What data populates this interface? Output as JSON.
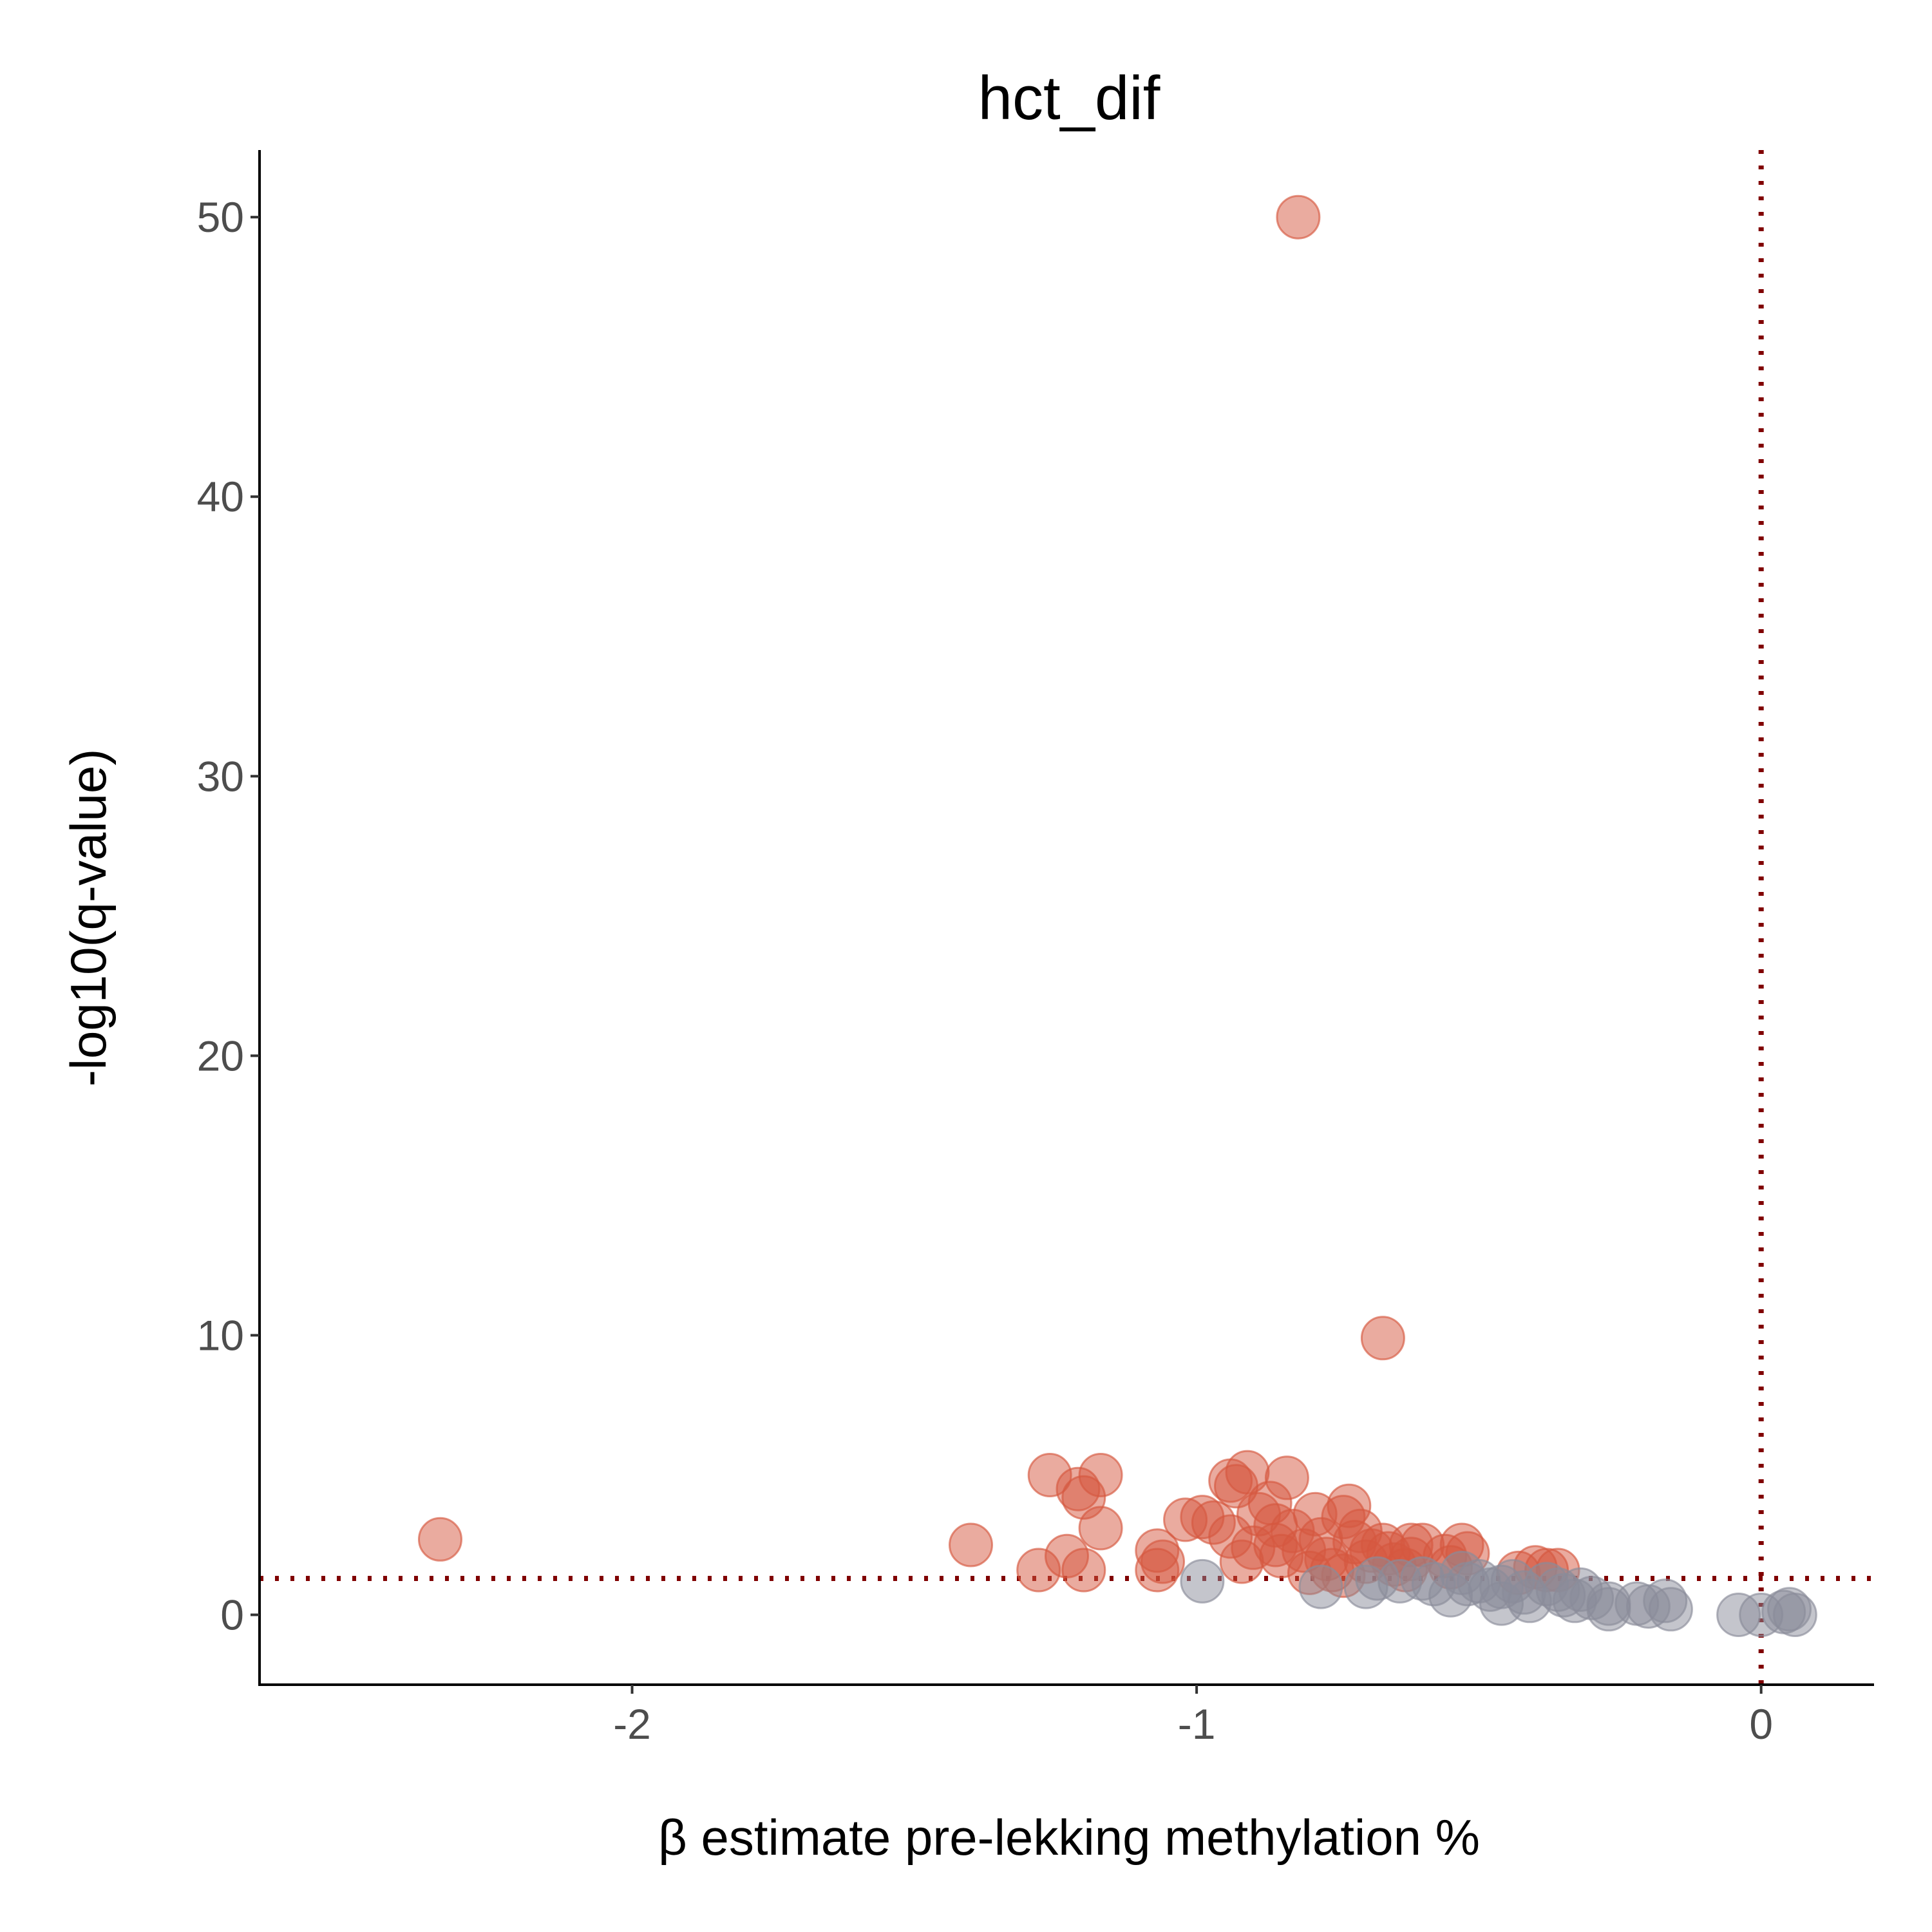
{
  "chart_data": {
    "type": "scatter",
    "title": "hct_dif",
    "xlabel": "β estimate pre-lekking methylation %",
    "ylabel": "-log10(q-value)",
    "xlim": [
      -2.66,
      0.2
    ],
    "ylim": [
      -2.5,
      52.4
    ],
    "xticks": [
      -2,
      -1,
      0
    ],
    "yticks": [
      0,
      10,
      20,
      30,
      40,
      50
    ],
    "xtick_labels": [
      "-2",
      "-1",
      "0"
    ],
    "ytick_labels": [
      "0",
      "10",
      "20",
      "30",
      "40",
      "50"
    ],
    "grid": false,
    "legend": "none",
    "reference_lines": {
      "vertical_x": 0,
      "horizontal_y": 1.3,
      "color": "#800000",
      "style": "dotted"
    },
    "series": [
      {
        "color": "#d6573f",
        "opacity": 0.5,
        "points": [
          [
            -0.82,
            50.0
          ],
          [
            -0.67,
            9.9
          ],
          [
            -2.34,
            2.7
          ],
          [
            -1.4,
            2.5
          ],
          [
            -1.26,
            5.0
          ],
          [
            -1.17,
            5.0
          ],
          [
            -1.21,
            4.5
          ],
          [
            -1.2,
            4.2
          ],
          [
            -1.17,
            3.1
          ],
          [
            -1.23,
            2.1
          ],
          [
            -1.28,
            1.6
          ],
          [
            -1.2,
            1.6
          ],
          [
            -1.07,
            2.3
          ],
          [
            -1.06,
            1.9
          ],
          [
            -1.07,
            1.6
          ],
          [
            -1.02,
            3.4
          ],
          [
            -0.99,
            3.5
          ],
          [
            -0.97,
            3.3
          ],
          [
            -0.94,
            4.8
          ],
          [
            -0.93,
            4.6
          ],
          [
            -0.91,
            5.1
          ],
          [
            -0.87,
            4.0
          ],
          [
            -0.84,
            4.9
          ],
          [
            -0.89,
            3.6
          ],
          [
            -0.86,
            3.2
          ],
          [
            -0.83,
            3.0
          ],
          [
            -0.94,
            2.8
          ],
          [
            -0.9,
            2.4
          ],
          [
            -0.86,
            2.5
          ],
          [
            -0.85,
            2.1
          ],
          [
            -0.81,
            2.3
          ],
          [
            -0.92,
            1.9
          ],
          [
            -0.79,
            3.6
          ],
          [
            -0.78,
            2.7
          ],
          [
            -0.77,
            2.0
          ],
          [
            -0.8,
            1.5
          ],
          [
            -0.73,
            3.9
          ],
          [
            -0.74,
            3.5
          ],
          [
            -0.71,
            3.0
          ],
          [
            -0.72,
            2.6
          ],
          [
            -0.69,
            2.3
          ],
          [
            -0.7,
            1.9
          ],
          [
            -0.76,
            1.6
          ],
          [
            -0.74,
            1.4
          ],
          [
            -0.67,
            2.5
          ],
          [
            -0.66,
            2.2
          ],
          [
            -0.65,
            1.8
          ],
          [
            -0.62,
            2.5
          ],
          [
            -0.6,
            2.5
          ],
          [
            -0.62,
            2.0
          ],
          [
            -0.63,
            1.6
          ],
          [
            -0.56,
            2.1
          ],
          [
            -0.53,
            2.5
          ],
          [
            -0.52,
            2.2
          ],
          [
            -0.55,
            1.7
          ],
          [
            -0.43,
            1.5
          ],
          [
            -0.4,
            1.7
          ],
          [
            -0.38,
            1.6
          ],
          [
            -0.36,
            1.6
          ]
        ]
      },
      {
        "color": "#8a8c99",
        "opacity": 0.5,
        "points": [
          [
            -0.99,
            1.2
          ],
          [
            -0.78,
            1.0
          ],
          [
            -0.7,
            1.0
          ],
          [
            -0.68,
            1.3
          ],
          [
            -0.64,
            1.2
          ],
          [
            -0.6,
            1.3
          ],
          [
            -0.58,
            1.1
          ],
          [
            -0.55,
            0.7
          ],
          [
            -0.53,
            1.5
          ],
          [
            -0.52,
            1.1
          ],
          [
            -0.5,
            1.2
          ],
          [
            -0.48,
            0.9
          ],
          [
            -0.46,
            1.0
          ],
          [
            -0.46,
            0.4
          ],
          [
            -0.44,
            1.2
          ],
          [
            -0.42,
            0.8
          ],
          [
            -0.41,
            0.5
          ],
          [
            -0.38,
            1.1
          ],
          [
            -0.36,
            0.9
          ],
          [
            -0.35,
            0.7
          ],
          [
            -0.33,
            0.5
          ],
          [
            -0.32,
            0.9
          ],
          [
            -0.3,
            0.6
          ],
          [
            -0.27,
            0.4
          ],
          [
            -0.27,
            0.2
          ],
          [
            -0.22,
            0.4
          ],
          [
            -0.2,
            0.3
          ],
          [
            -0.17,
            0.5
          ],
          [
            -0.16,
            0.2
          ],
          [
            -0.04,
            0.0
          ],
          [
            0.0,
            0.0
          ],
          [
            0.04,
            0.1
          ],
          [
            0.05,
            0.2
          ],
          [
            0.06,
            0.0
          ]
        ]
      }
    ]
  }
}
